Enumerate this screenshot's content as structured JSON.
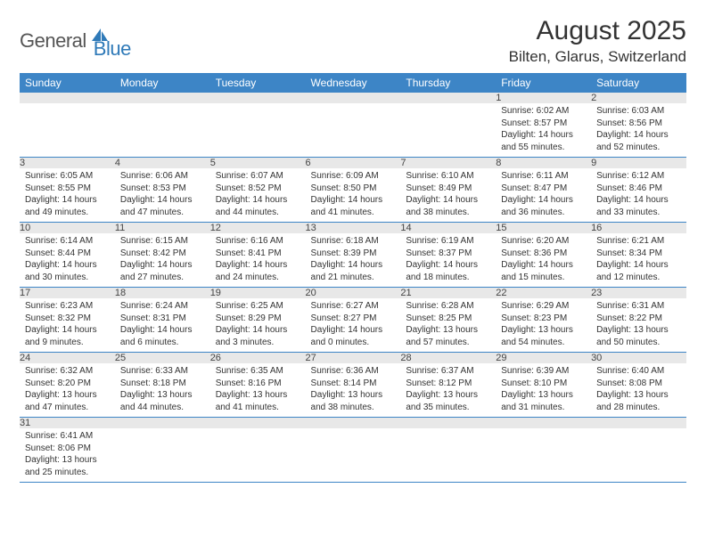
{
  "logo": {
    "general": "General",
    "blue": "Blue"
  },
  "header": {
    "month": "August 2025",
    "location": "Bilten, Glarus, Switzerland"
  },
  "colors": {
    "header_bg": "#3d85c6",
    "header_text": "#ffffff",
    "daynum_bg": "#e8e8e8",
    "row_border": "#3d85c6",
    "logo_blue": "#2f7ab8"
  },
  "weekdays": [
    "Sunday",
    "Monday",
    "Tuesday",
    "Wednesday",
    "Thursday",
    "Friday",
    "Saturday"
  ],
  "weeks": [
    [
      null,
      null,
      null,
      null,
      null,
      {
        "day": "1",
        "sunrise": "Sunrise: 6:02 AM",
        "sunset": "Sunset: 8:57 PM",
        "daylight": "Daylight: 14 hours and 55 minutes."
      },
      {
        "day": "2",
        "sunrise": "Sunrise: 6:03 AM",
        "sunset": "Sunset: 8:56 PM",
        "daylight": "Daylight: 14 hours and 52 minutes."
      }
    ],
    [
      {
        "day": "3",
        "sunrise": "Sunrise: 6:05 AM",
        "sunset": "Sunset: 8:55 PM",
        "daylight": "Daylight: 14 hours and 49 minutes."
      },
      {
        "day": "4",
        "sunrise": "Sunrise: 6:06 AM",
        "sunset": "Sunset: 8:53 PM",
        "daylight": "Daylight: 14 hours and 47 minutes."
      },
      {
        "day": "5",
        "sunrise": "Sunrise: 6:07 AM",
        "sunset": "Sunset: 8:52 PM",
        "daylight": "Daylight: 14 hours and 44 minutes."
      },
      {
        "day": "6",
        "sunrise": "Sunrise: 6:09 AM",
        "sunset": "Sunset: 8:50 PM",
        "daylight": "Daylight: 14 hours and 41 minutes."
      },
      {
        "day": "7",
        "sunrise": "Sunrise: 6:10 AM",
        "sunset": "Sunset: 8:49 PM",
        "daylight": "Daylight: 14 hours and 38 minutes."
      },
      {
        "day": "8",
        "sunrise": "Sunrise: 6:11 AM",
        "sunset": "Sunset: 8:47 PM",
        "daylight": "Daylight: 14 hours and 36 minutes."
      },
      {
        "day": "9",
        "sunrise": "Sunrise: 6:12 AM",
        "sunset": "Sunset: 8:46 PM",
        "daylight": "Daylight: 14 hours and 33 minutes."
      }
    ],
    [
      {
        "day": "10",
        "sunrise": "Sunrise: 6:14 AM",
        "sunset": "Sunset: 8:44 PM",
        "daylight": "Daylight: 14 hours and 30 minutes."
      },
      {
        "day": "11",
        "sunrise": "Sunrise: 6:15 AM",
        "sunset": "Sunset: 8:42 PM",
        "daylight": "Daylight: 14 hours and 27 minutes."
      },
      {
        "day": "12",
        "sunrise": "Sunrise: 6:16 AM",
        "sunset": "Sunset: 8:41 PM",
        "daylight": "Daylight: 14 hours and 24 minutes."
      },
      {
        "day": "13",
        "sunrise": "Sunrise: 6:18 AM",
        "sunset": "Sunset: 8:39 PM",
        "daylight": "Daylight: 14 hours and 21 minutes."
      },
      {
        "day": "14",
        "sunrise": "Sunrise: 6:19 AM",
        "sunset": "Sunset: 8:37 PM",
        "daylight": "Daylight: 14 hours and 18 minutes."
      },
      {
        "day": "15",
        "sunrise": "Sunrise: 6:20 AM",
        "sunset": "Sunset: 8:36 PM",
        "daylight": "Daylight: 14 hours and 15 minutes."
      },
      {
        "day": "16",
        "sunrise": "Sunrise: 6:21 AM",
        "sunset": "Sunset: 8:34 PM",
        "daylight": "Daylight: 14 hours and 12 minutes."
      }
    ],
    [
      {
        "day": "17",
        "sunrise": "Sunrise: 6:23 AM",
        "sunset": "Sunset: 8:32 PM",
        "daylight": "Daylight: 14 hours and 9 minutes."
      },
      {
        "day": "18",
        "sunrise": "Sunrise: 6:24 AM",
        "sunset": "Sunset: 8:31 PM",
        "daylight": "Daylight: 14 hours and 6 minutes."
      },
      {
        "day": "19",
        "sunrise": "Sunrise: 6:25 AM",
        "sunset": "Sunset: 8:29 PM",
        "daylight": "Daylight: 14 hours and 3 minutes."
      },
      {
        "day": "20",
        "sunrise": "Sunrise: 6:27 AM",
        "sunset": "Sunset: 8:27 PM",
        "daylight": "Daylight: 14 hours and 0 minutes."
      },
      {
        "day": "21",
        "sunrise": "Sunrise: 6:28 AM",
        "sunset": "Sunset: 8:25 PM",
        "daylight": "Daylight: 13 hours and 57 minutes."
      },
      {
        "day": "22",
        "sunrise": "Sunrise: 6:29 AM",
        "sunset": "Sunset: 8:23 PM",
        "daylight": "Daylight: 13 hours and 54 minutes."
      },
      {
        "day": "23",
        "sunrise": "Sunrise: 6:31 AM",
        "sunset": "Sunset: 8:22 PM",
        "daylight": "Daylight: 13 hours and 50 minutes."
      }
    ],
    [
      {
        "day": "24",
        "sunrise": "Sunrise: 6:32 AM",
        "sunset": "Sunset: 8:20 PM",
        "daylight": "Daylight: 13 hours and 47 minutes."
      },
      {
        "day": "25",
        "sunrise": "Sunrise: 6:33 AM",
        "sunset": "Sunset: 8:18 PM",
        "daylight": "Daylight: 13 hours and 44 minutes."
      },
      {
        "day": "26",
        "sunrise": "Sunrise: 6:35 AM",
        "sunset": "Sunset: 8:16 PM",
        "daylight": "Daylight: 13 hours and 41 minutes."
      },
      {
        "day": "27",
        "sunrise": "Sunrise: 6:36 AM",
        "sunset": "Sunset: 8:14 PM",
        "daylight": "Daylight: 13 hours and 38 minutes."
      },
      {
        "day": "28",
        "sunrise": "Sunrise: 6:37 AM",
        "sunset": "Sunset: 8:12 PM",
        "daylight": "Daylight: 13 hours and 35 minutes."
      },
      {
        "day": "29",
        "sunrise": "Sunrise: 6:39 AM",
        "sunset": "Sunset: 8:10 PM",
        "daylight": "Daylight: 13 hours and 31 minutes."
      },
      {
        "day": "30",
        "sunrise": "Sunrise: 6:40 AM",
        "sunset": "Sunset: 8:08 PM",
        "daylight": "Daylight: 13 hours and 28 minutes."
      }
    ],
    [
      {
        "day": "31",
        "sunrise": "Sunrise: 6:41 AM",
        "sunset": "Sunset: 8:06 PM",
        "daylight": "Daylight: 13 hours and 25 minutes."
      },
      null,
      null,
      null,
      null,
      null,
      null
    ]
  ]
}
